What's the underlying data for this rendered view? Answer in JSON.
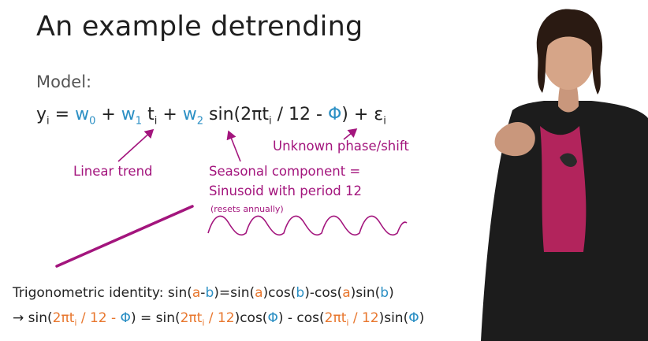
{
  "slide": {
    "title": "An example detrending",
    "model_label": "Model:"
  },
  "equation": {
    "y": "y",
    "sub_i": "i",
    "eq_sign": " = ",
    "w0": "w",
    "w0_sub": "0",
    "plus1": " + ",
    "w1": "w",
    "w1_sub": "1",
    "t": "t",
    "t_sub": "i",
    "plus2": " + ",
    "w2": "w",
    "w2_sub": "2",
    "sin_open": " sin(2πt",
    "sin_sub": "i",
    "sin_mid": " / 12  -  ",
    "phi": "Φ",
    "close": ") + ε",
    "eps_sub": "i"
  },
  "annotations": {
    "linear_trend": "Linear trend",
    "seasonal_line1": "Seasonal component =",
    "seasonal_line2": "Sinusoid with period 12",
    "seasonal_note": "(resets annually)",
    "unknown_phase": "Unknown phase/shift"
  },
  "identity": {
    "label": "Trigonometric identity: ",
    "sin": "sin(",
    "a1": "a",
    "minus": "-",
    "b1": "b",
    "eq": ")=sin(",
    "a2": "a",
    "cos1": ")cos(",
    "b2": "b",
    "minus_cos": ")-cos(",
    "a3": "a",
    "sin2": ")sin(",
    "b3": "b",
    "close": ")"
  },
  "expansion": {
    "arrow": "→ ",
    "sin_open": "sin(",
    "arg1": "2πt",
    "arg1_sub": "i",
    "arg1_rest": " / 12  -  ",
    "phi1": "Φ",
    "eq": ") = sin(",
    "arg2": "2πt",
    "arg2_sub": "i",
    "arg2_rest": " / 12",
    "cos_open": ")cos(",
    "phi2": "Φ",
    "minus_cos": ") - cos(",
    "arg3": "2πt",
    "arg3_sub": "i",
    "arg3_rest": " / 12",
    "sin2": ")sin(",
    "phi3": "Φ",
    "close": ")"
  },
  "colors": {
    "blue": "#2b8fc4",
    "magenta": "#a3157d",
    "orange": "#e8772e"
  }
}
